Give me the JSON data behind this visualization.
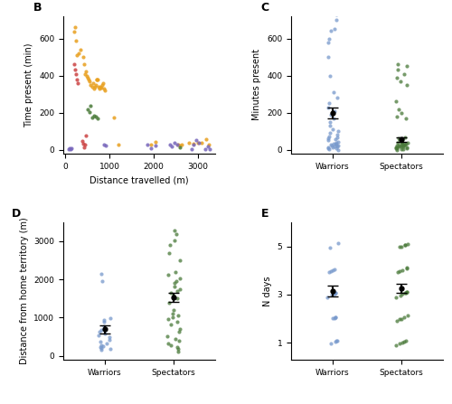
{
  "panel_B": {
    "label": "B",
    "xlabel": "Distance travelled (m)",
    "ylabel": "Time present (min)",
    "xlim": [
      -50,
      3400
    ],
    "ylim": [
      -20,
      720
    ],
    "xticks": [
      0,
      1000,
      2000,
      3000
    ],
    "yticks": [
      0,
      200,
      400,
      600
    ],
    "scatter_groups": [
      {
        "color": "#E8A020",
        "x": [
          200,
          220,
          240,
          260,
          300,
          350,
          400,
          420,
          440,
          460,
          480,
          500,
          520,
          540,
          560,
          600,
          620,
          640,
          660,
          680,
          700,
          720,
          740,
          760,
          780,
          800,
          820,
          840,
          860,
          880,
          900,
          1100,
          1200,
          1950,
          2050,
          2550,
          2600,
          2650,
          2800,
          2900,
          3000,
          3100,
          3200,
          3250
        ],
        "y": [
          635,
          660,
          590,
          510,
          520,
          540,
          500,
          460,
          410,
          420,
          400,
          390,
          380,
          370,
          350,
          340,
          360,
          330,
          340,
          350,
          380,
          380,
          380,
          340,
          330,
          340,
          335,
          350,
          360,
          330,
          320,
          175,
          30,
          30,
          45,
          30,
          25,
          30,
          40,
          35,
          40,
          40,
          55,
          30
        ]
      },
      {
        "color": "#CC4444",
        "x": [
          200,
          220,
          240,
          260,
          280,
          380,
          400,
          420,
          440,
          460
        ],
        "y": [
          460,
          430,
          410,
          380,
          360,
          48,
          35,
          15,
          28,
          75
        ]
      },
      {
        "color": "#4A7A3A",
        "x": [
          500,
          540,
          570,
          610,
          650,
          690,
          730,
          2600
        ],
        "y": [
          220,
          205,
          235,
          175,
          185,
          178,
          170,
          15
        ]
      },
      {
        "color": "#7766BB",
        "x": [
          80,
          100,
          120,
          140,
          870,
          910,
          1850,
          1950,
          2050,
          2370,
          2420,
          2480,
          2540,
          2860,
          2910,
          2970,
          3030,
          3180,
          3230,
          3280
        ],
        "y": [
          5,
          10,
          5,
          8,
          30,
          25,
          28,
          10,
          22,
          30,
          20,
          40,
          30,
          5,
          30,
          50,
          40,
          5,
          20,
          5
        ]
      }
    ]
  },
  "panel_C": {
    "label": "C",
    "xlabel": "",
    "ylabel": "Minutes present",
    "xlim": [
      -0.6,
      1.6
    ],
    "ylim": [
      -20,
      720
    ],
    "yticks": [
      0,
      200,
      400,
      600
    ],
    "categories": [
      "Warriors",
      "Spectators"
    ],
    "warriors_color": "#7799CC",
    "spectators_color": "#4A7A3A",
    "warriors_mean": 200,
    "warriors_se": 30,
    "spectators_mean": 55,
    "spectators_se": 12,
    "warriors_dots": [
      0,
      5,
      8,
      10,
      12,
      15,
      18,
      20,
      22,
      25,
      28,
      30,
      32,
      35,
      40,
      45,
      50,
      55,
      60,
      65,
      70,
      80,
      90,
      100,
      110,
      130,
      150,
      170,
      190,
      210,
      230,
      250,
      280,
      310,
      400,
      500,
      580,
      600,
      640,
      650,
      700,
      730
    ],
    "spectators_dots": [
      0,
      5,
      5,
      8,
      10,
      10,
      12,
      15,
      15,
      18,
      20,
      20,
      22,
      25,
      25,
      28,
      30,
      30,
      32,
      35,
      38,
      40,
      42,
      45,
      50,
      55,
      60,
      65,
      170,
      180,
      200,
      220,
      260,
      350,
      370,
      390,
      410,
      430,
      450,
      460
    ]
  },
  "panel_D": {
    "label": "D",
    "xlabel": "",
    "ylabel": "Distance from home territory (m)",
    "xlim": [
      -0.6,
      1.6
    ],
    "ylim": [
      -100,
      3500
    ],
    "yticks": [
      0,
      1000,
      2000,
      3000
    ],
    "categories": [
      "Warriors",
      "Spectators"
    ],
    "warriors_color": "#7799CC",
    "spectators_color": "#4A7A3A",
    "warriors_mean": 690,
    "warriors_se": 110,
    "spectators_mean": 1530,
    "spectators_se": 115,
    "warriors_dots": [
      150,
      180,
      200,
      230,
      250,
      280,
      320,
      370,
      420,
      480,
      530,
      580,
      630,
      680,
      780,
      880,
      940,
      990,
      1950,
      2150
    ],
    "spectators_dots": [
      120,
      180,
      230,
      280,
      330,
      390,
      450,
      520,
      620,
      710,
      810,
      900,
      960,
      1010,
      1060,
      1110,
      1200,
      1400,
      1500,
      1580,
      1640,
      1690,
      1740,
      1810,
      1960,
      2030,
      2120,
      2200,
      2500,
      2700,
      2900,
      3020,
      3200,
      3280,
      1920
    ]
  },
  "panel_E": {
    "label": "E",
    "xlabel": "",
    "ylabel": "N days",
    "xlim": [
      -0.6,
      1.6
    ],
    "ylim": [
      0.3,
      6.0
    ],
    "yticks": [
      1,
      3,
      5
    ],
    "categories": [
      "Warriors",
      "Spectators"
    ],
    "warriors_color": "#7799CC",
    "spectators_color": "#4A7A3A",
    "warriors_mean": 3.15,
    "warriors_se": 0.22,
    "spectators_mean": 3.25,
    "spectators_se": 0.18,
    "warriors_dots": [
      1,
      1,
      1,
      1,
      2,
      2,
      2,
      2,
      3,
      3,
      3,
      3,
      3,
      3,
      4,
      4,
      4,
      4,
      5,
      5
    ],
    "spectators_dots": [
      1,
      1,
      1,
      1,
      1,
      2,
      2,
      2,
      2,
      2,
      3,
      3,
      3,
      3,
      3,
      3,
      3,
      4,
      4,
      4,
      4,
      4,
      5,
      5,
      5,
      5,
      5
    ]
  }
}
